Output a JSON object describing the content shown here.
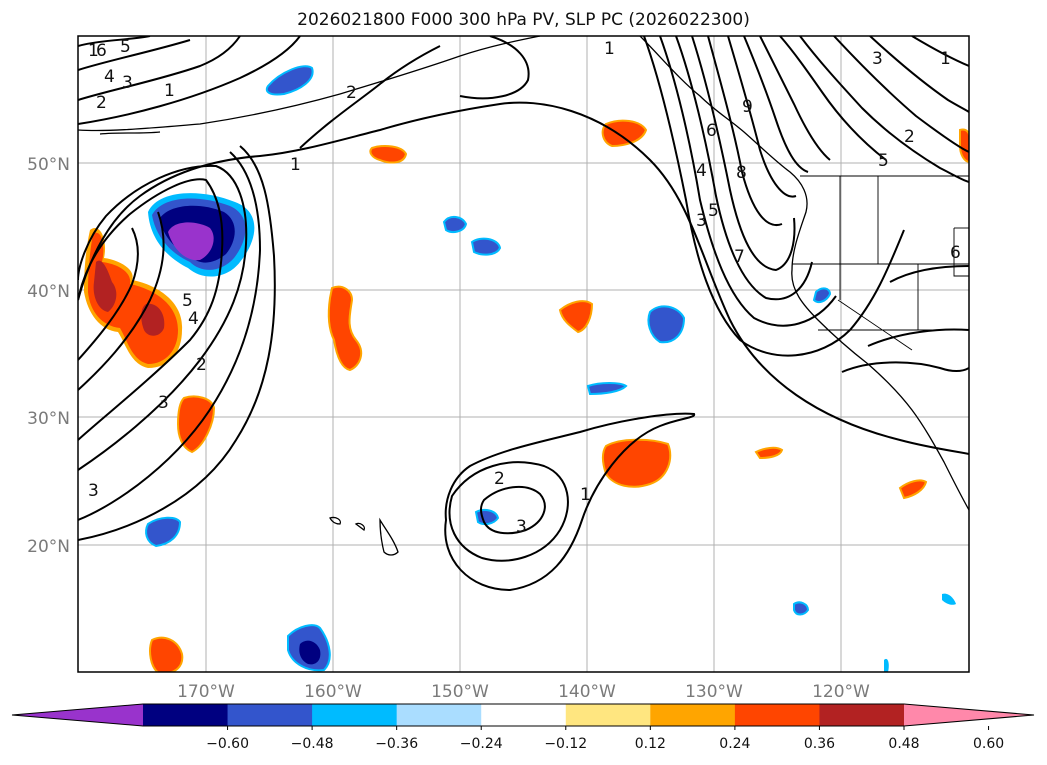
{
  "title": "2026021800 F000 300 hPa PV, SLP PC (2026022300)",
  "latitude_labels": [
    "50°N",
    "40°N",
    "30°N",
    "20°N"
  ],
  "longitude_labels": [
    "170°W",
    "160°W",
    "150°W",
    "140°W",
    "130°W",
    "120°W"
  ],
  "colorbar": {
    "ticks": [
      "−0.60",
      "−0.48",
      "−0.36",
      "−0.24",
      "−0.12",
      "0.12",
      "0.24",
      "0.36",
      "0.48",
      "0.60"
    ],
    "colors": [
      "#9933cc",
      "#000080",
      "#3355cc",
      "#00bbff",
      "#aaddff",
      "#ffffff",
      "#ffe680",
      "#ffa500",
      "#ff4500",
      "#b22222",
      "#ff88aa"
    ]
  },
  "contour_labels": [
    "1",
    "2",
    "3",
    "4",
    "5",
    "6",
    "1",
    "2",
    "3",
    "4",
    "5",
    "1",
    "2",
    "3",
    "1",
    "2",
    "3",
    "6",
    "7",
    "8",
    "9",
    "2",
    "3",
    "4",
    "5",
    "6"
  ]
}
